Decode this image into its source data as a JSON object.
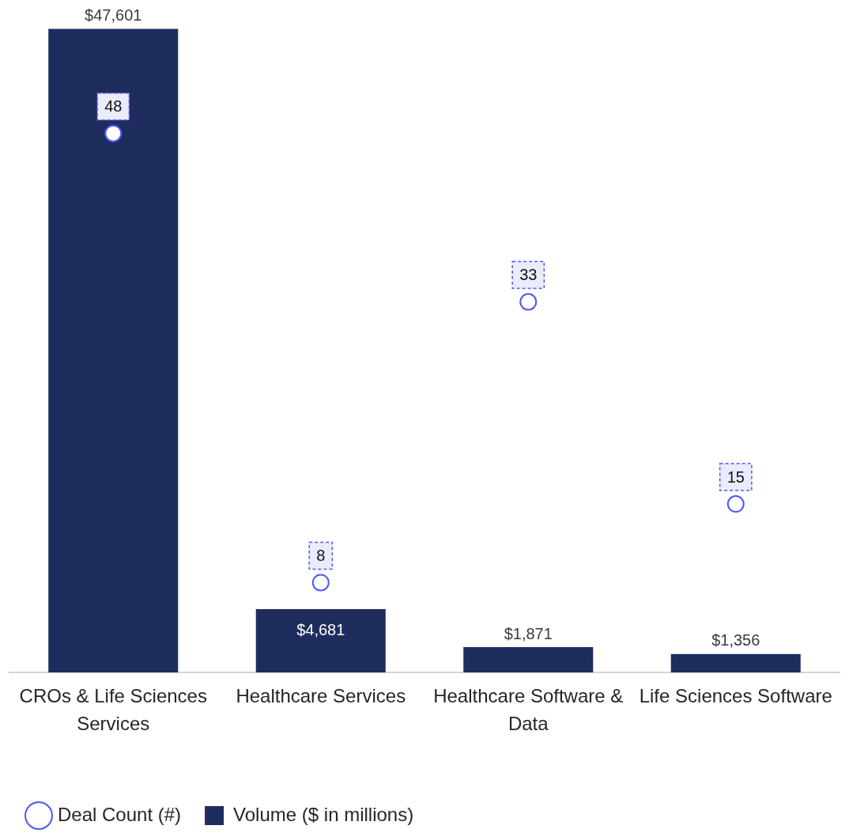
{
  "chart_data": {
    "type": "bar",
    "categories": [
      "CROs & Life Sciences Services",
      "Healthcare Services",
      "Healthcare Software & Data",
      "Life Sciences Software"
    ],
    "series": [
      {
        "name": "Deal Count (#)",
        "type": "scatter",
        "axis": "y2",
        "color": "#5058f2",
        "values": [
          48,
          8,
          33,
          15
        ],
        "value_labels": [
          "48",
          "8",
          "33",
          "15"
        ]
      },
      {
        "name": "Volume ($ in millions)",
        "color": "#1f2d5e",
        "values": [
          47601,
          4681,
          1871,
          1356
        ],
        "value_labels": [
          "$47,601",
          "$4,681",
          "$1,871",
          "$1,356"
        ]
      }
    ],
    "tick_labels": "x",
    "legend": "bottom left",
    "marker": "circle"
  }
}
